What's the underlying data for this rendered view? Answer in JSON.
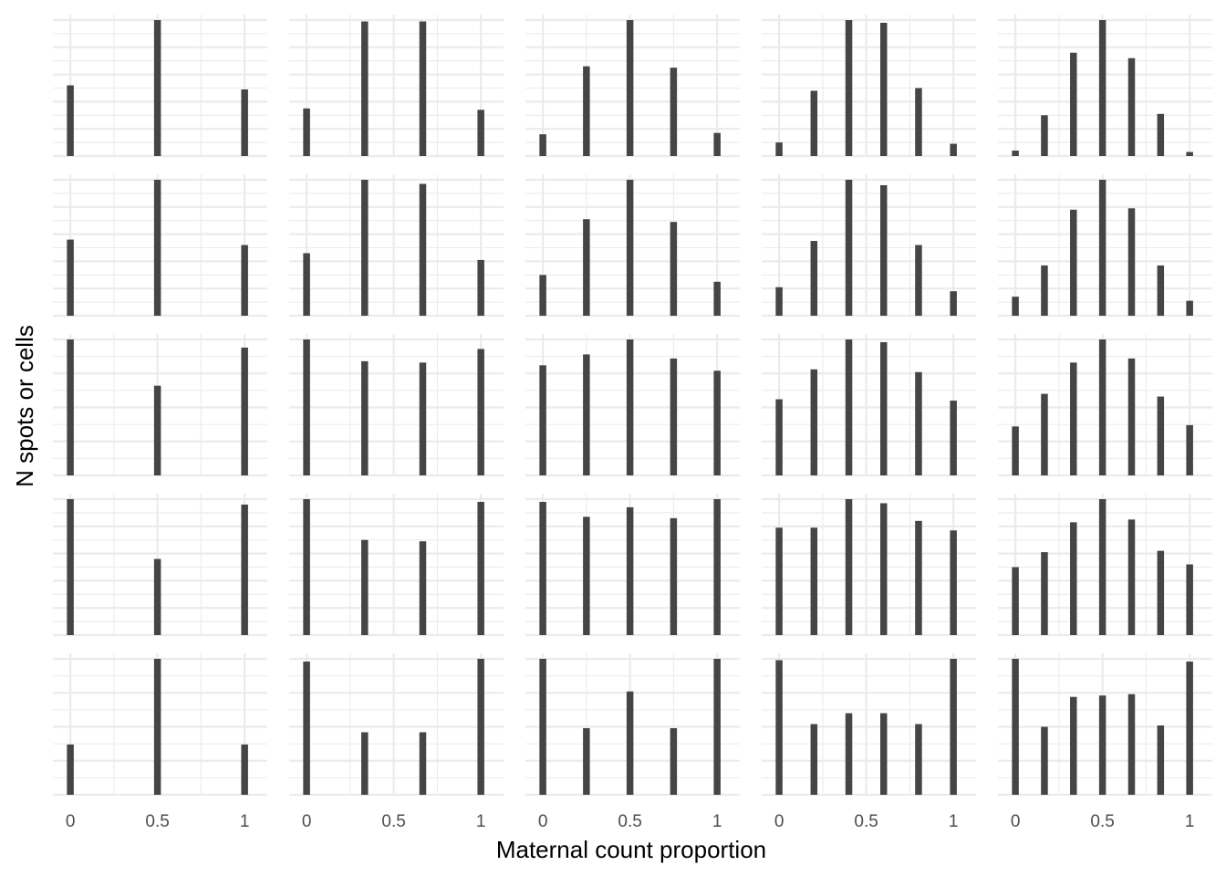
{
  "chart_data": {
    "type": "bar",
    "layout": "5x5 facet grid",
    "xlabel": "Maternal count proportion",
    "ylabel": "N spots or cells",
    "xlim": [
      -0.1,
      1.13
    ],
    "x_ticks": [
      0,
      0.5,
      1
    ],
    "x_tick_labels": [
      "0",
      "0.5",
      "1"
    ],
    "grid": true,
    "y_tick_labels_shown": false,
    "panel_y_gridlines": [
      [
        [
          0.2,
          0.4,
          0.6,
          0.8,
          1.0
        ],
        [
          0.2,
          0.4,
          0.6,
          0.8,
          1.0
        ],
        [
          0.2,
          0.4,
          0.6,
          0.8,
          1.0
        ],
        [
          0.2,
          0.4,
          0.6,
          0.8,
          1.0
        ],
        [
          0.2,
          0.4,
          0.6,
          0.8,
          1.0
        ]
      ],
      [
        [
          0.2,
          0.4,
          0.6,
          0.8,
          1.0
        ],
        [
          0.2,
          0.4,
          0.6,
          0.8,
          1.0
        ],
        [
          0.2,
          0.4,
          0.6,
          0.8,
          1.0
        ],
        [
          0.2,
          0.4,
          0.6,
          0.8,
          1.0
        ],
        [
          0.2,
          0.4,
          0.6,
          0.8,
          1.0
        ]
      ],
      [
        [
          0.25,
          0.5,
          0.75,
          1.0
        ],
        [
          0.25,
          0.5,
          0.75,
          1.0
        ],
        [
          0.25,
          0.5,
          0.75,
          1.0
        ],
        [
          0.25,
          0.5,
          0.75,
          1.0
        ],
        [
          0.25,
          0.5,
          0.75,
          1.0
        ]
      ],
      [
        [
          0.2,
          0.4,
          0.6,
          0.8,
          1.0
        ],
        [
          0.2,
          0.4,
          0.6,
          0.8,
          1.0
        ],
        [
          0.2,
          0.4,
          0.6,
          0.8,
          1.0
        ],
        [
          0.2,
          0.4,
          0.6,
          0.8,
          1.0
        ],
        [
          0.2,
          0.4,
          0.6,
          0.8,
          1.0
        ]
      ],
      [
        [
          0.25,
          0.5,
          0.75,
          1.0
        ],
        [
          0.25,
          0.5,
          0.75,
          1.0
        ],
        [
          0.25,
          0.5,
          0.75,
          1.0
        ],
        [
          0.25,
          0.5,
          0.75,
          1.0
        ],
        [
          0.25,
          0.5,
          0.75,
          1.0
        ]
      ]
    ],
    "bar_color": "#454545",
    "grid_color": "#ebebeb",
    "columns": [
      {
        "x": [
          0,
          0.5,
          1
        ]
      },
      {
        "x": [
          0,
          0.3333,
          0.6667,
          1
        ]
      },
      {
        "x": [
          0,
          0.25,
          0.5,
          0.75,
          1
        ]
      },
      {
        "x": [
          0,
          0.2,
          0.4,
          0.6,
          0.8,
          1
        ]
      },
      {
        "x": [
          0,
          0.1667,
          0.3333,
          0.5,
          0.6667,
          0.8333,
          1
        ]
      }
    ],
    "panels": [
      [
        {
          "values": [
            0.52,
            1.0,
            0.49
          ]
        },
        {
          "values": [
            0.35,
            0.99,
            0.99,
            0.34
          ]
        },
        {
          "values": [
            0.16,
            0.66,
            1.0,
            0.65,
            0.17
          ]
        },
        {
          "values": [
            0.1,
            0.48,
            1.0,
            0.98,
            0.5,
            0.09
          ]
        },
        {
          "values": [
            0.04,
            0.3,
            0.76,
            1.0,
            0.72,
            0.31,
            0.03
          ]
        }
      ],
      [
        {
          "values": [
            0.56,
            1.0,
            0.52
          ]
        },
        {
          "values": [
            0.46,
            1.0,
            0.97,
            0.41
          ]
        },
        {
          "values": [
            0.3,
            0.71,
            1.0,
            0.69,
            0.25
          ]
        },
        {
          "values": [
            0.21,
            0.55,
            1.0,
            0.96,
            0.52,
            0.18
          ]
        },
        {
          "values": [
            0.14,
            0.37,
            0.78,
            1.0,
            0.79,
            0.37,
            0.11
          ]
        }
      ],
      [
        {
          "values": [
            1.0,
            0.66,
            0.94
          ]
        },
        {
          "values": [
            1.0,
            0.84,
            0.83,
            0.93
          ]
        },
        {
          "values": [
            0.81,
            0.89,
            1.0,
            0.86,
            0.77
          ]
        },
        {
          "values": [
            0.56,
            0.78,
            1.0,
            0.98,
            0.76,
            0.55
          ]
        },
        {
          "values": [
            0.36,
            0.6,
            0.83,
            1.0,
            0.86,
            0.58,
            0.37
          ]
        }
      ],
      [
        {
          "values": [
            1.0,
            0.56,
            0.96
          ]
        },
        {
          "values": [
            1.0,
            0.7,
            0.69,
            0.98
          ]
        },
        {
          "values": [
            0.98,
            0.87,
            0.94,
            0.86,
            1.0
          ]
        },
        {
          "values": [
            0.79,
            0.79,
            1.0,
            0.97,
            0.84,
            0.77
          ]
        },
        {
          "values": [
            0.5,
            0.61,
            0.83,
            1.0,
            0.85,
            0.62,
            0.52
          ]
        }
      ],
      [
        {
          "values": [
            0.37,
            1.0,
            0.37
          ]
        },
        {
          "values": [
            0.98,
            0.46,
            0.46,
            1.0
          ]
        },
        {
          "values": [
            1.0,
            0.49,
            0.76,
            0.49,
            1.0
          ]
        },
        {
          "values": [
            0.99,
            0.52,
            0.6,
            0.6,
            0.52,
            1.0
          ]
        },
        {
          "values": [
            1.0,
            0.5,
            0.72,
            0.73,
            0.74,
            0.51,
            0.98
          ]
        }
      ]
    ]
  }
}
